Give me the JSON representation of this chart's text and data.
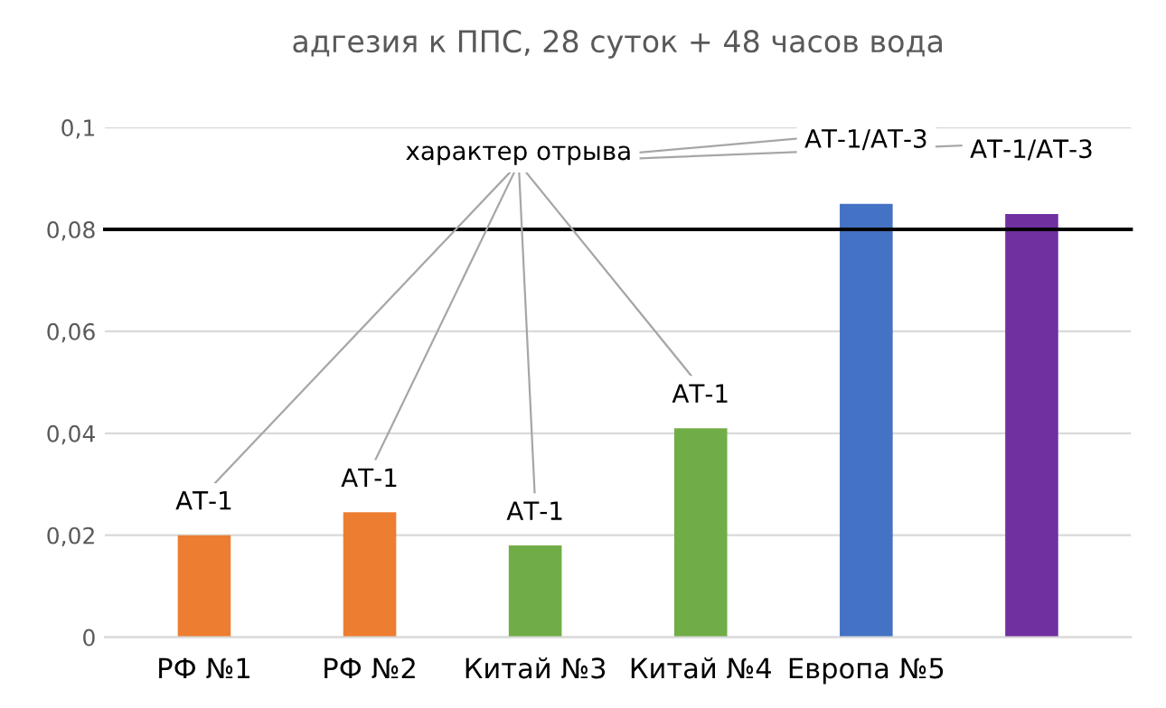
{
  "chart_data": {
    "type": "bar",
    "title": "адгезия к ППС, 28 суток + 48 часов вода",
    "categories": [
      "РФ №1",
      "РФ №2",
      "Китай №3",
      "Китай №4",
      "Европа №5",
      null
    ],
    "values": [
      0.02,
      0.0245,
      0.018,
      0.041,
      0.085,
      0.083
    ],
    "colors": [
      "#ed7d31",
      "#ed7d31",
      "#70ad47",
      "#70ad47",
      "#4472c4",
      "#7030a0"
    ],
    "value_labels": [
      "АТ-1",
      "АТ-1",
      "АТ-1",
      "АТ-1",
      "АТ-1/АТ-3",
      "АТ-1/АТ-3"
    ],
    "ylim": [
      0,
      0.1
    ],
    "yticks": [
      {
        "value": 0,
        "label": "0"
      },
      {
        "value": 0.02,
        "label": "0,02"
      },
      {
        "value": 0.04,
        "label": "0,04"
      },
      {
        "value": 0.06,
        "label": "0,06"
      },
      {
        "value": 0.08,
        "label": "0,08"
      },
      {
        "value": 0.1,
        "label": "0,1"
      }
    ],
    "grid": "y",
    "ref_lines": [
      {
        "axis": "y",
        "value": 0.08,
        "color": "#000000"
      }
    ],
    "annotations": [
      "характер отрыва"
    ]
  }
}
